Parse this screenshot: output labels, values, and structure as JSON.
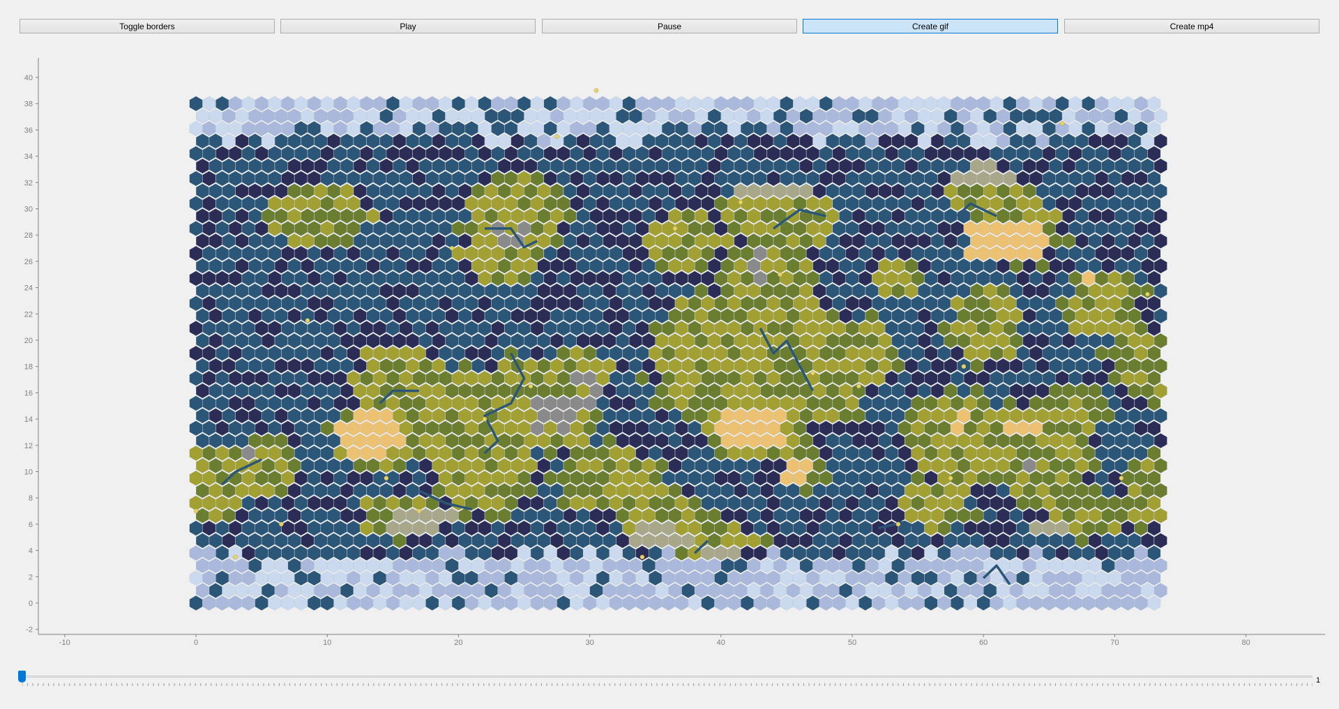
{
  "toolbar": {
    "toggle_borders_label": "Toggle borders",
    "play_label": "Play",
    "pause_label": "Pause",
    "create_gif_label": "Create gif",
    "create_mp4_label": "Create mp4"
  },
  "plot": {
    "x_ticks": [
      "-10",
      "0",
      "10",
      "20",
      "30",
      "40",
      "50",
      "60",
      "70",
      "80"
    ],
    "y_ticks": [
      "40",
      "38",
      "36",
      "34",
      "32",
      "30",
      "28",
      "26",
      "24",
      "22",
      "20",
      "18",
      "16",
      "14",
      "12",
      "10",
      "8",
      "6",
      "4",
      "2",
      "0",
      "-2"
    ],
    "xlim": [
      -10,
      86
    ],
    "ylim": [
      -2,
      41
    ],
    "grid_cols": 74,
    "grid_rows": 41,
    "colors": {
      "deep_ocean": "#2c2d56",
      "ocean": "#2b5677",
      "ice": "#a9b8db",
      "ice_light": "#cad9ee",
      "grassland": "#a2a032",
      "forest": "#6b7e30",
      "desert": "#ecc272",
      "hills": "#a9a789",
      "mountain": "#8a8a8a",
      "river": "#2b5677",
      "city": "#e8d36a"
    }
  },
  "slider": {
    "value": "1",
    "position_fraction": 0
  }
}
